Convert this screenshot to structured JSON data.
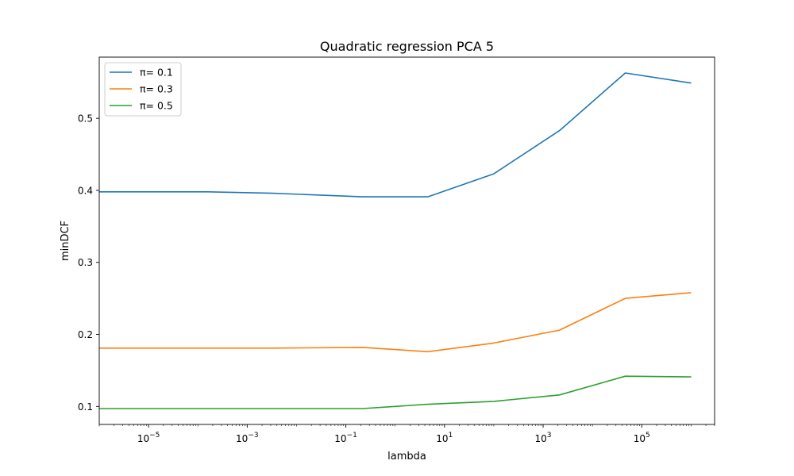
{
  "chart_data": {
    "type": "line",
    "title": "Quadratic regression PCA 5",
    "xlabel": "lambda",
    "ylabel": "minDCF",
    "xscale": "log",
    "xlim": [
      1e-06,
      3000000.0
    ],
    "ylim": [
      0.075,
      0.585
    ],
    "legend": "top-left",
    "grid": false,
    "x": [
      1e-06,
      0.00016,
      0.0033,
      0.22,
      4.6,
      100,
      2150,
      46400,
      1000000
    ],
    "series": [
      {
        "name": "π= 0.1",
        "color": "#1f77b4",
        "values": [
          0.398,
          0.398,
          0.396,
          0.391,
          0.391,
          0.423,
          0.483,
          0.563,
          0.549
        ]
      },
      {
        "name": "π= 0.3",
        "color": "#ff7f0e",
        "values": [
          0.181,
          0.181,
          0.181,
          0.182,
          0.176,
          0.188,
          0.206,
          0.25,
          0.258
        ]
      },
      {
        "name": "π= 0.5",
        "color": "#2ca02c",
        "values": [
          0.097,
          0.097,
          0.097,
          0.097,
          0.103,
          0.107,
          0.116,
          0.142,
          0.141
        ]
      }
    ],
    "xticks": [
      {
        "value": 1e-05,
        "base": "10",
        "exp": "−5"
      },
      {
        "value": 0.001,
        "base": "10",
        "exp": "−3"
      },
      {
        "value": 0.1,
        "base": "10",
        "exp": "−1"
      },
      {
        "value": 10,
        "base": "10",
        "exp": "1"
      },
      {
        "value": 1000,
        "base": "10",
        "exp": "3"
      },
      {
        "value": 100000,
        "base": "10",
        "exp": "5"
      }
    ],
    "yticks": [
      {
        "value": 0.1,
        "label": "0.1"
      },
      {
        "value": 0.2,
        "label": "0.2"
      },
      {
        "value": 0.3,
        "label": "0.3"
      },
      {
        "value": 0.4,
        "label": "0.4"
      },
      {
        "value": 0.5,
        "label": "0.5"
      }
    ]
  }
}
